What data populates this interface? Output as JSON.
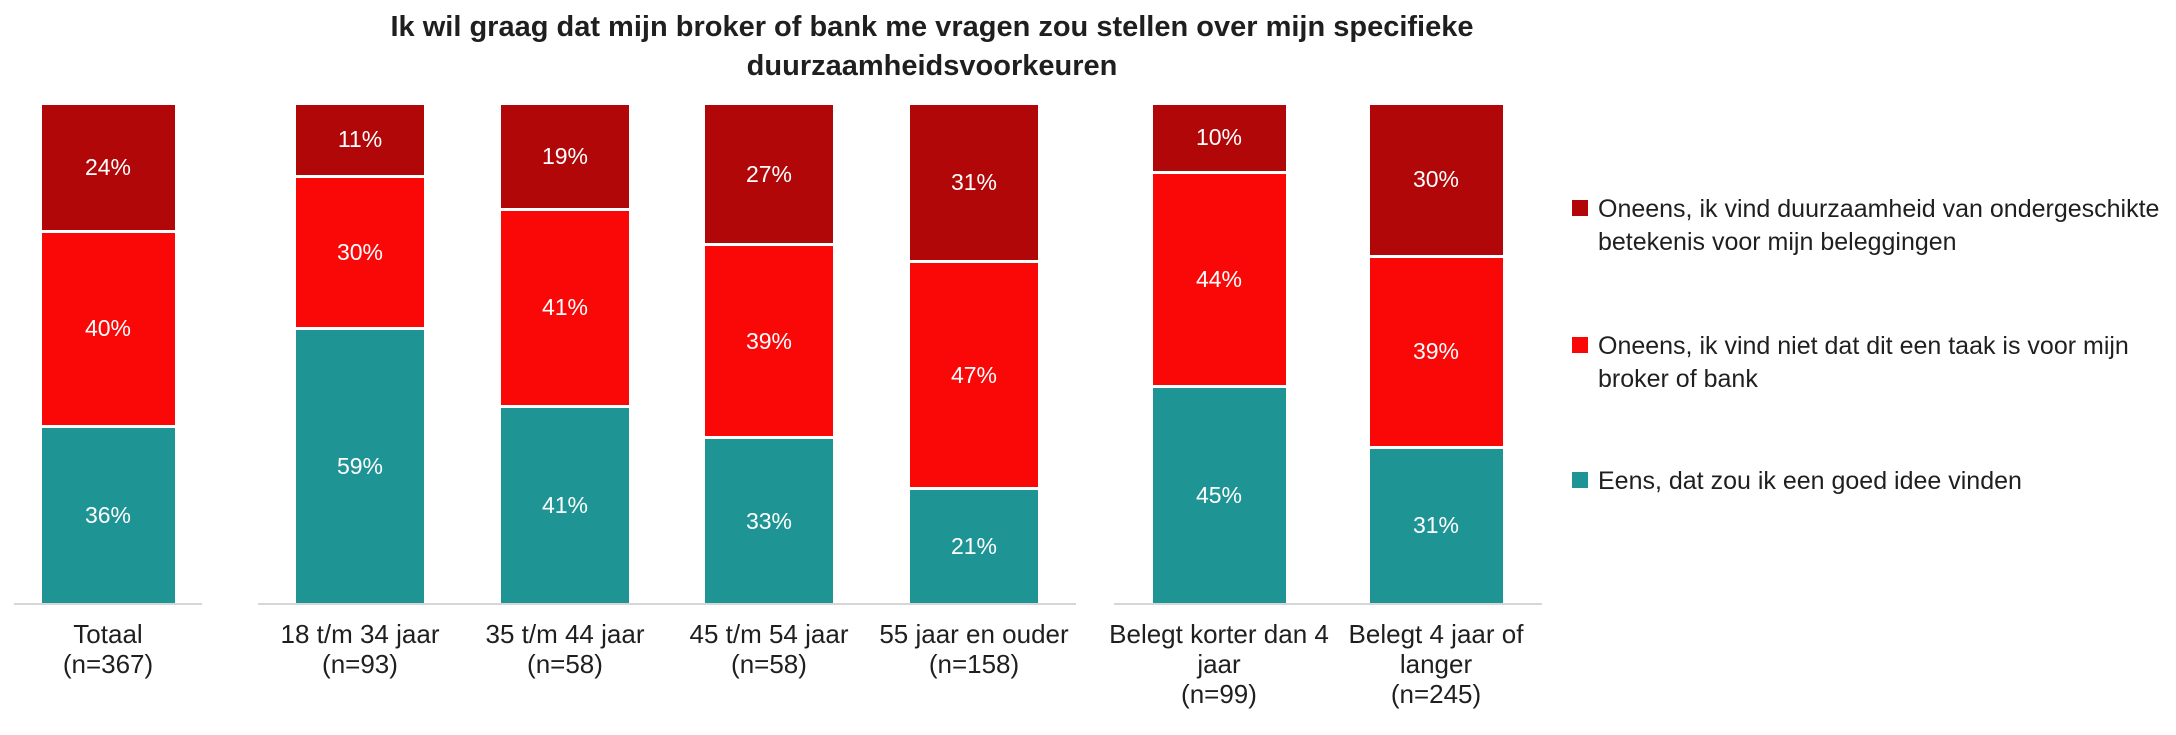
{
  "chart_data": {
    "type": "bar",
    "stacked": true,
    "percent_stacked": true,
    "unit": "%",
    "grid": false,
    "ylim": [
      0,
      100
    ],
    "legend_position": "right",
    "title": "Ik wil graag dat mijn broker of bank me vragen zou stellen over mijn specifieke duurzaamheidsvoorkeuren",
    "categories": [
      "Totaal (n=367)",
      "18 t/m 34 jaar (n=93)",
      "35 t/m 44 jaar (n=58)",
      "45 t/m 54 jaar (n=58)",
      "55 jaar en ouder (n=158)",
      "Belegt korter dan 4 jaar (n=99)",
      "Belegt 4 jaar of langer (n=245)"
    ],
    "category_label_lines": [
      [
        "Totaal",
        "(n=367)"
      ],
      [
        "18 t/m 34 jaar",
        "(n=93)"
      ],
      [
        "35 t/m 44 jaar",
        "(n=58)"
      ],
      [
        "45 t/m 54 jaar",
        "(n=58)"
      ],
      [
        "55 jaar en ouder",
        "(n=158)"
      ],
      [
        "Belegt korter dan 4",
        "jaar",
        "(n=99)"
      ],
      [
        "Belegt 4 jaar of",
        "langer",
        "(n=245)"
      ]
    ],
    "series": [
      {
        "name": "Eens, dat zou ik een goed idee vinden",
        "color": "#1f9494",
        "values": [
          36,
          59,
          41,
          33,
          21,
          45,
          31
        ]
      },
      {
        "name": "Oneens, ik vind niet dat dit een taak is voor mijn broker of bank",
        "color": "#fa0808",
        "values": [
          40,
          30,
          41,
          39,
          47,
          44,
          39
        ]
      },
      {
        "name": "Oneens, ik vind duurzaamheid van ondergeschikte betekenis voor mijn beleggingen",
        "color": "#b10709",
        "values": [
          24,
          11,
          19,
          27,
          31,
          10,
          30
        ]
      }
    ],
    "legend": [
      {
        "label": "Oneens, ik vind duurzaamheid van ondergeschikte betekenis voor mijn beleggingen",
        "lines": [
          "Oneens, ik vind duurzaamheid van ondergeschikte",
          "betekenis voor mijn beleggingen"
        ],
        "color": "#b10709"
      },
      {
        "label": "Oneens, ik vind niet dat dit een taak is voor mijn broker of bank",
        "lines": [
          "Oneens, ik vind niet dat dit een taak is voor mijn",
          "broker of bank"
        ],
        "color": "#fa0808"
      },
      {
        "label": "Eens, dat zou ik een goed idee vinden",
        "lines": [
          "Eens, dat zou ik een goed idee vinden"
        ],
        "color": "#1f9494"
      }
    ],
    "colors": {
      "agree": "#1f9494",
      "disagree_task": "#fa0808",
      "disagree_importance": "#b10709",
      "axis_line": "#d6d6d6",
      "text": "#1f1f1f",
      "value_label": "#ffffff"
    }
  }
}
